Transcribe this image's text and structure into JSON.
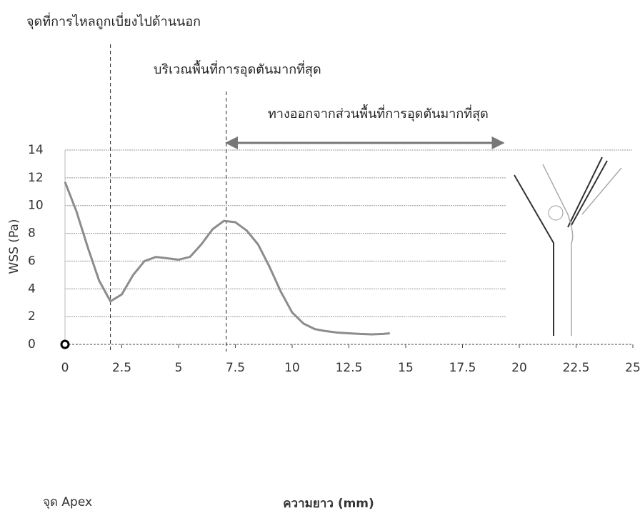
{
  "chart_data": {
    "type": "line",
    "xlabel": "ความยาว (mm)",
    "ylabel": "WSS (Pa)",
    "x": [
      0,
      0.5,
      1,
      1.5,
      2,
      2.5,
      3,
      3.5,
      4,
      4.5,
      5,
      5.5,
      6,
      6.5,
      7,
      7.5,
      8,
      8.5,
      9,
      9.5,
      10,
      10.5,
      11,
      11.5,
      12,
      12.5,
      13,
      13.5,
      14,
      14.3
    ],
    "series": [
      {
        "name": "WSS",
        "color": "#8c8c8c",
        "values": [
          11.7,
          9.6,
          7.0,
          4.6,
          3.1,
          3.6,
          5.0,
          6.0,
          6.3,
          6.2,
          6.1,
          6.3,
          7.2,
          8.3,
          8.9,
          8.8,
          8.2,
          7.2,
          5.6,
          3.8,
          2.3,
          1.5,
          1.1,
          0.95,
          0.85,
          0.8,
          0.75,
          0.72,
          0.75,
          0.8
        ]
      }
    ],
    "xlim": [
      0,
      25
    ],
    "xticks": [
      0,
      2.5,
      5,
      7.5,
      10,
      12.5,
      15,
      17.5,
      20,
      22.5,
      25
    ],
    "ylim": [
      0,
      14
    ],
    "yticks": [
      0,
      2,
      4,
      6,
      8,
      10,
      12,
      14
    ],
    "grid": true,
    "origin_label": "จุด Apex",
    "annotations": [
      {
        "text": "จุดที่การไหลถูกเบี่ยงไปด้านนอก",
        "x": 2
      },
      {
        "text": "บริเวณพื้นที่การอุดตันมากที่สุด",
        "x": 7.1
      },
      {
        "text": "ทางออกจากส่วนพื้นที่การอุดตันมากที่สุด",
        "x": [
          7.1,
          19.3
        ]
      }
    ]
  }
}
